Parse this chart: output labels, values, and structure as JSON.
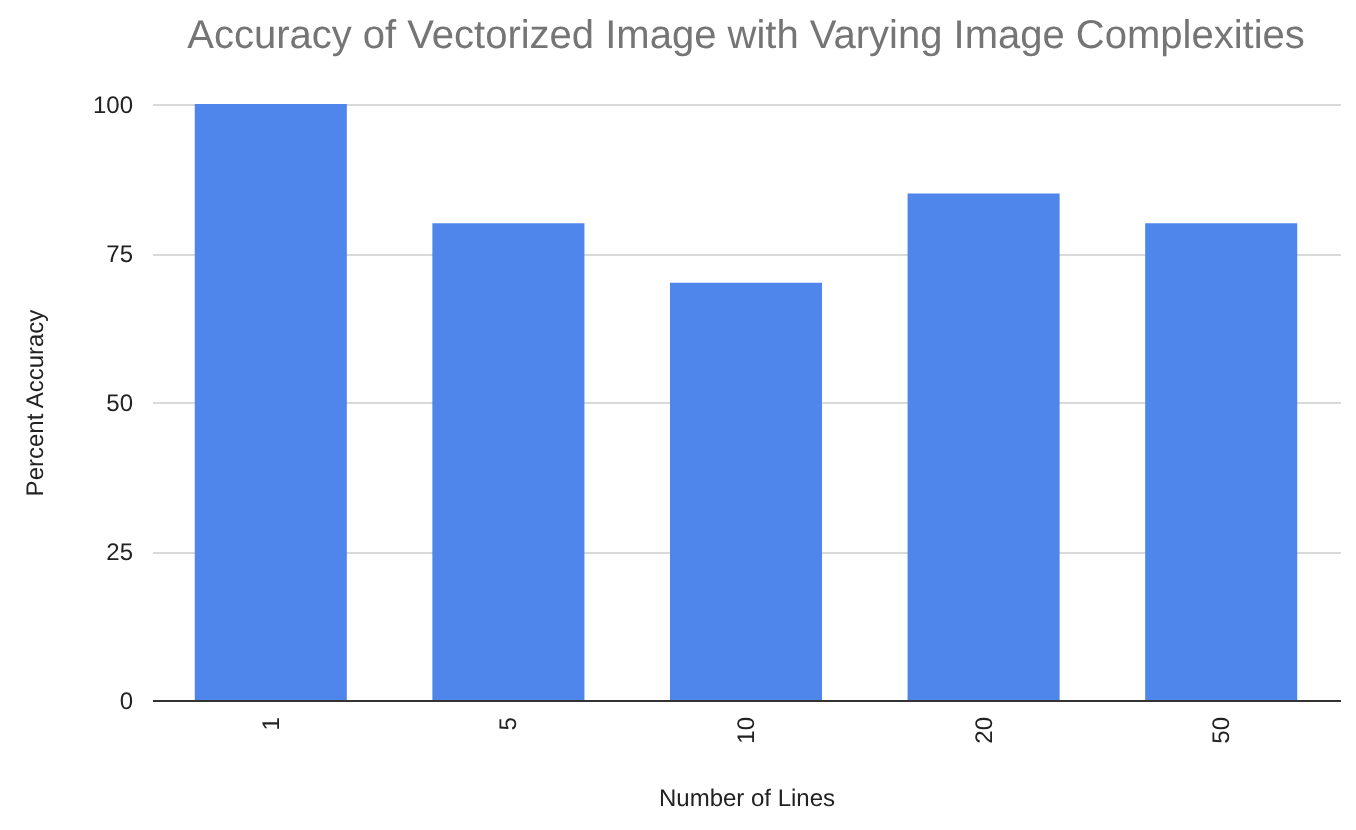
{
  "chart_data": {
    "type": "bar",
    "title": "Accuracy of Vectorized Image with Varying Image Complexities",
    "xlabel": "Number of Lines",
    "ylabel": "Percent Accuracy",
    "categories": [
      "1",
      "5",
      "10",
      "20",
      "50"
    ],
    "values": [
      100,
      80,
      70,
      85,
      80
    ],
    "color": "#4f86ec",
    "ylim": [
      0,
      100
    ],
    "yticks": [
      0,
      25,
      50,
      75,
      100
    ],
    "grid": "y"
  }
}
